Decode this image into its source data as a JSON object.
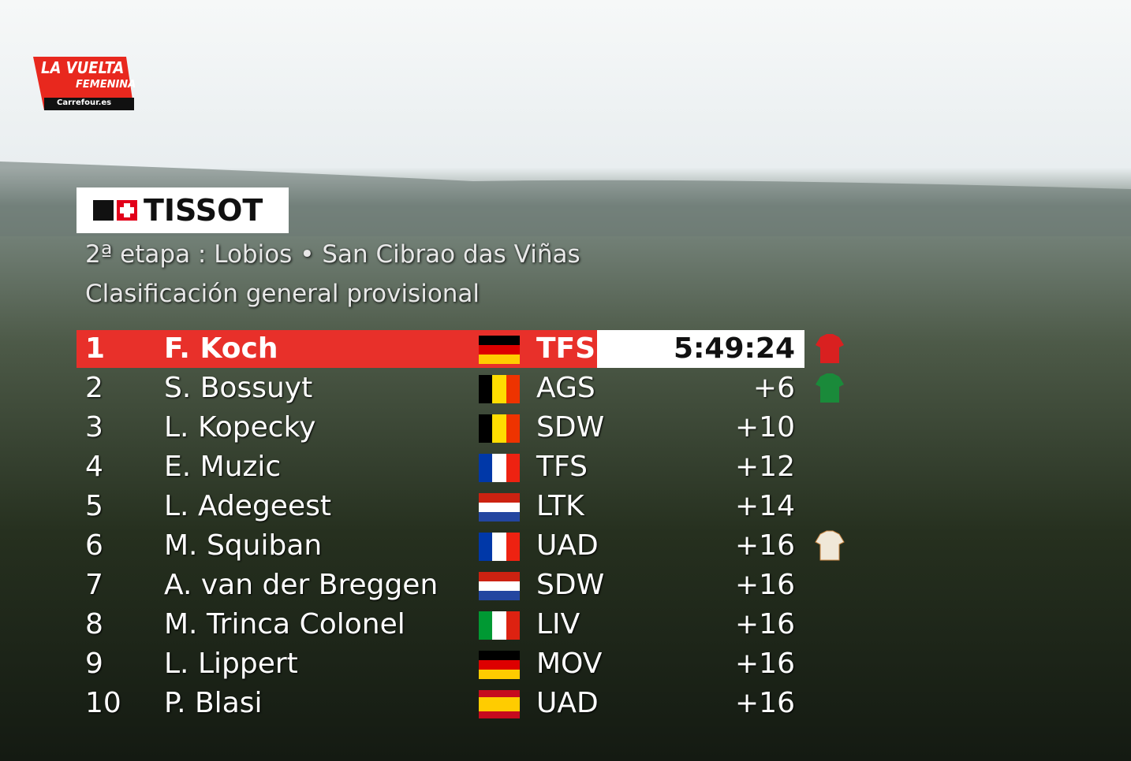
{
  "logo": {
    "line1": "LA VUELTA",
    "line2": "FEMENINA",
    "sponsor": "Carrefour.es"
  },
  "timing_sponsor": "TISSOT",
  "stage": "2ª etapa : Lobios • San Cibrao das Viñas",
  "classification": "Clasificación general provisional",
  "rows": [
    {
      "rank": 1,
      "name": "F. Koch",
      "team": "TFS",
      "time": "5:49:24"
    },
    {
      "rank": 2,
      "name": "S. Bossuyt",
      "team": "AGS",
      "time": "+6"
    },
    {
      "rank": 3,
      "name": "L. Kopecky",
      "team": "SDW",
      "time": "+10"
    },
    {
      "rank": 4,
      "name": "E. Muzic",
      "team": "TFS",
      "time": "+12"
    },
    {
      "rank": 5,
      "name": "L. Adegeest",
      "team": "LTK",
      "time": "+14"
    },
    {
      "rank": 6,
      "name": "M. Squiban",
      "team": "UAD",
      "time": "+16"
    },
    {
      "rank": 7,
      "name": "A. van der Breggen",
      "team": "SDW",
      "time": "+16"
    },
    {
      "rank": 8,
      "name": "M. Trinca Colonel",
      "team": "LIV",
      "time": "+16"
    },
    {
      "rank": 9,
      "name": "L. Lippert",
      "team": "MOV",
      "time": "+16"
    },
    {
      "rank": 10,
      "name": "P. Blasi",
      "team": "UAD",
      "time": "+16"
    }
  ]
}
